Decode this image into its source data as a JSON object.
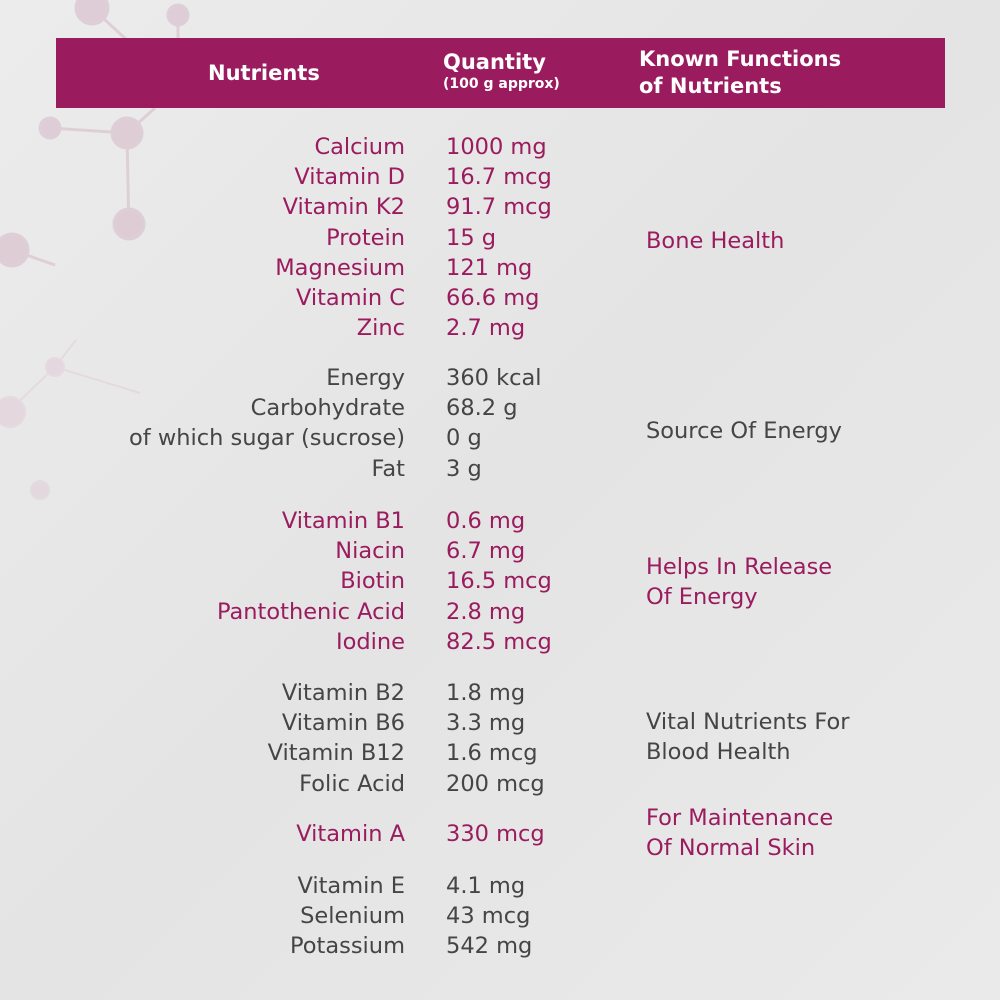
{
  "colors": {
    "accent": "#9b1b5f",
    "text_gray": "#454545",
    "background": "#e8e8e8"
  },
  "header": {
    "nutrients": "Nutrients",
    "quantity": "Quantity",
    "quantity_sub": "(100 g approx)",
    "functions_line1": "Known Functions",
    "functions_line2": "of Nutrients"
  },
  "groups": [
    {
      "color": "pink",
      "function": [
        "Bone Health"
      ],
      "rows": [
        {
          "name": "Calcium",
          "qty": "1000 mg"
        },
        {
          "name": "Vitamin D",
          "qty": "16.7 mcg"
        },
        {
          "name": "Vitamin K2",
          "qty": "91.7 mcg"
        },
        {
          "name": "Protein",
          "qty": "15 g"
        },
        {
          "name": "Magnesium",
          "qty": "121 mg"
        },
        {
          "name": "Vitamin C",
          "qty": "66.6 mg"
        },
        {
          "name": "Zinc",
          "qty": "2.7 mg"
        }
      ]
    },
    {
      "color": "gray",
      "function": [
        "Source Of Energy"
      ],
      "rows": [
        {
          "name": "Energy",
          "qty": "360 kcal"
        },
        {
          "name": "Carbohydrate",
          "qty": "68.2 g"
        },
        {
          "name": "of which sugar (sucrose)",
          "qty": "0 g"
        },
        {
          "name": "Fat",
          "qty": "3 g"
        }
      ]
    },
    {
      "color": "pink",
      "function": [
        "Helps In Release",
        "Of Energy"
      ],
      "rows": [
        {
          "name": "Vitamin B1",
          "qty": "0.6 mg"
        },
        {
          "name": "Niacin",
          "qty": "6.7 mg"
        },
        {
          "name": "Biotin",
          "qty": "16.5 mcg"
        },
        {
          "name": "Pantothenic Acid",
          "qty": "2.8 mg"
        },
        {
          "name": "Iodine",
          "qty": "82.5 mcg"
        }
      ]
    },
    {
      "color": "gray",
      "function": [
        "Vital Nutrients For",
        "Blood Health"
      ],
      "rows": [
        {
          "name": "Vitamin B2",
          "qty": "1.8 mg"
        },
        {
          "name": "Vitamin B6",
          "qty": "3.3 mg"
        },
        {
          "name": "Vitamin B12",
          "qty": "1.6 mcg"
        },
        {
          "name": "Folic Acid",
          "qty": "200 mcg"
        }
      ]
    },
    {
      "color": "pink",
      "function": [
        "For Maintenance",
        "Of Normal Skin"
      ],
      "rows": [
        {
          "name": "Vitamin A",
          "qty": "330 mcg"
        }
      ]
    },
    {
      "color": "gray",
      "function": [],
      "rows": [
        {
          "name": "Vitamin E",
          "qty": "4.1 mg"
        },
        {
          "name": "Selenium",
          "qty": "43 mcg"
        },
        {
          "name": "Potassium",
          "qty": "542 mg"
        }
      ]
    }
  ]
}
